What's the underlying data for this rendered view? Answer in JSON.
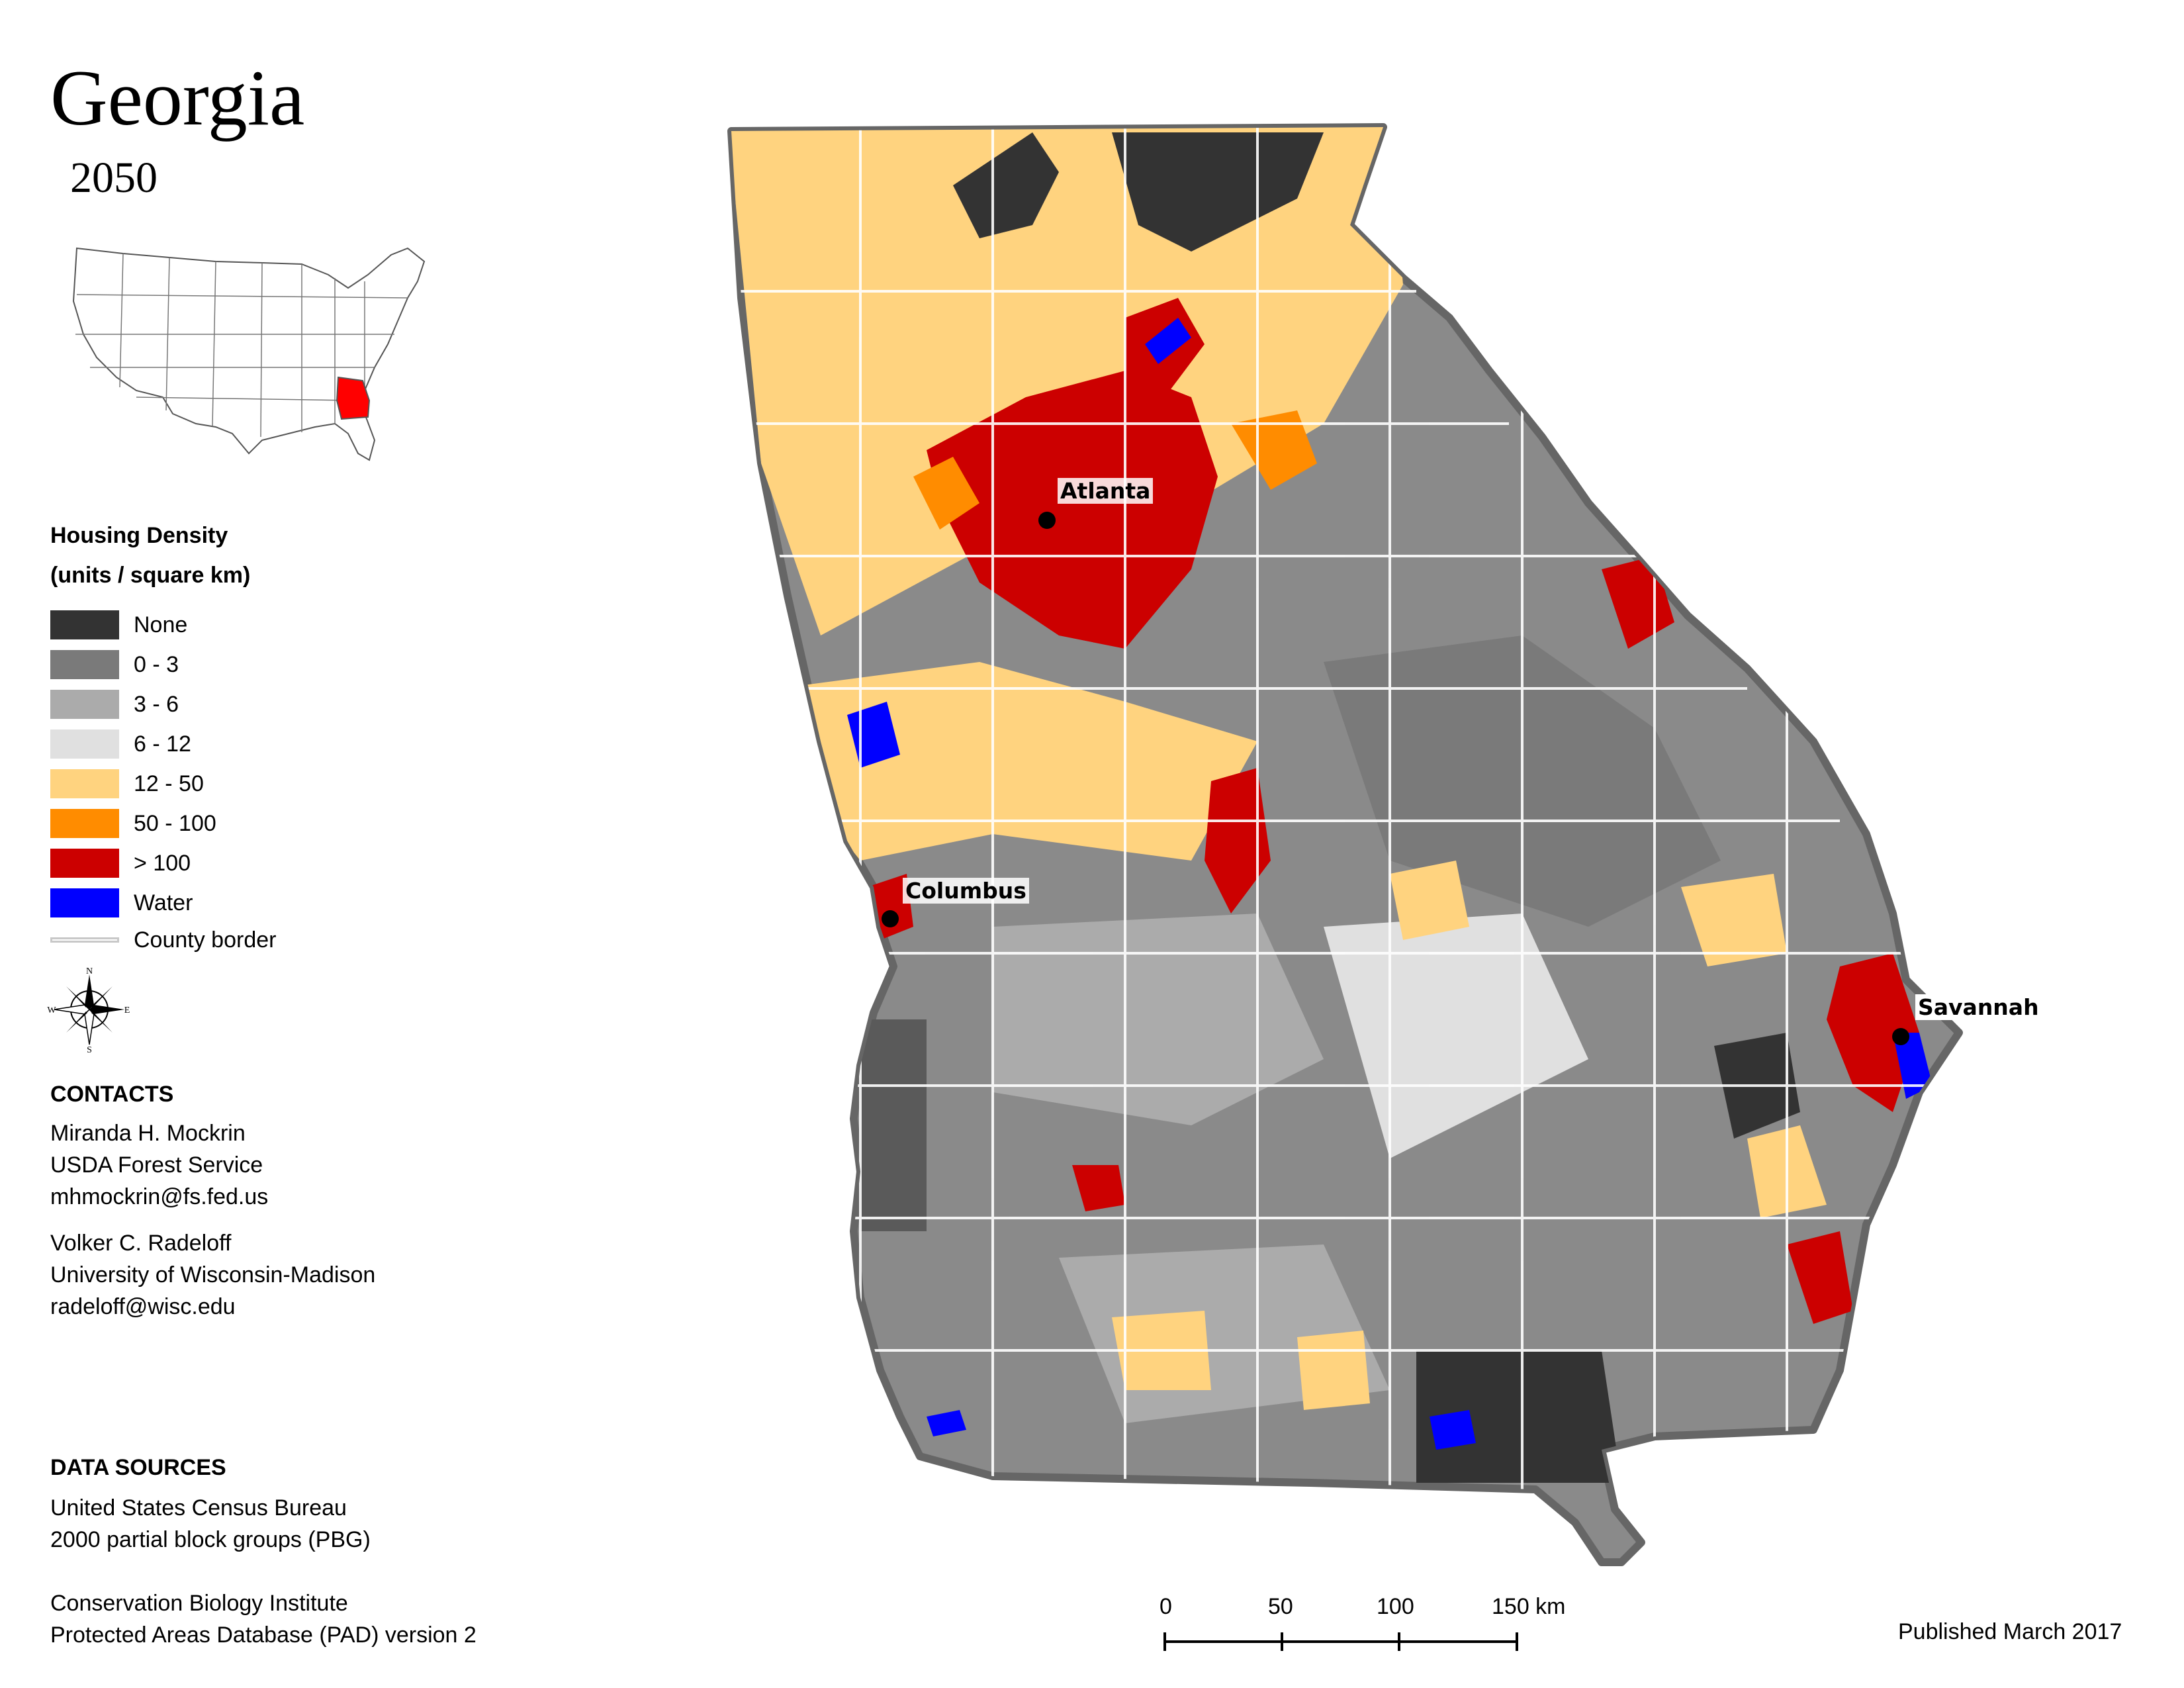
{
  "title": "Georgia",
  "year": "2050",
  "legend": {
    "heading_line1": "Housing Density",
    "heading_line2": "(units / square km)",
    "items": [
      {
        "label": "None",
        "color": "#333333"
      },
      {
        "label": "0 - 3",
        "color": "#7a7a7a"
      },
      {
        "label": "3 - 6",
        "color": "#ababab"
      },
      {
        "label": "6 - 12",
        "color": "#e0e0e0"
      },
      {
        "label": "12 - 50",
        "color": "#ffd37f"
      },
      {
        "label": "50 - 100",
        "color": "#ff8c00"
      },
      {
        "label": "> 100",
        "color": "#cc0000"
      },
      {
        "label": "Water",
        "color": "#0000ff"
      }
    ],
    "county_border_label": "County border"
  },
  "compass": {
    "n": "N",
    "s": "S",
    "e": "E",
    "w": "W"
  },
  "contacts": {
    "heading": "CONTACTS",
    "people": [
      {
        "name": "Miranda H. Mockrin",
        "org": "USDA Forest Service",
        "email": "mhmockrin@fs.fed.us"
      },
      {
        "name": "Volker C. Radeloff",
        "org": "University of Wisconsin-Madison",
        "email": "radeloff@wisc.edu"
      }
    ]
  },
  "data_sources": {
    "heading": "DATA SOURCES",
    "sources": [
      {
        "line1": "United States Census Bureau",
        "line2": "2000 partial block groups (PBG)"
      },
      {
        "line1": "Conservation Biology Institute",
        "line2": "Protected Areas Database (PAD) version 2"
      }
    ]
  },
  "cities": {
    "atlanta": "Atlanta",
    "columbus": "Columbus",
    "savannah": "Savannah"
  },
  "scale_bar": {
    "labels": [
      "0",
      "50",
      "100",
      "150 km"
    ]
  },
  "published": "Published March 2017"
}
